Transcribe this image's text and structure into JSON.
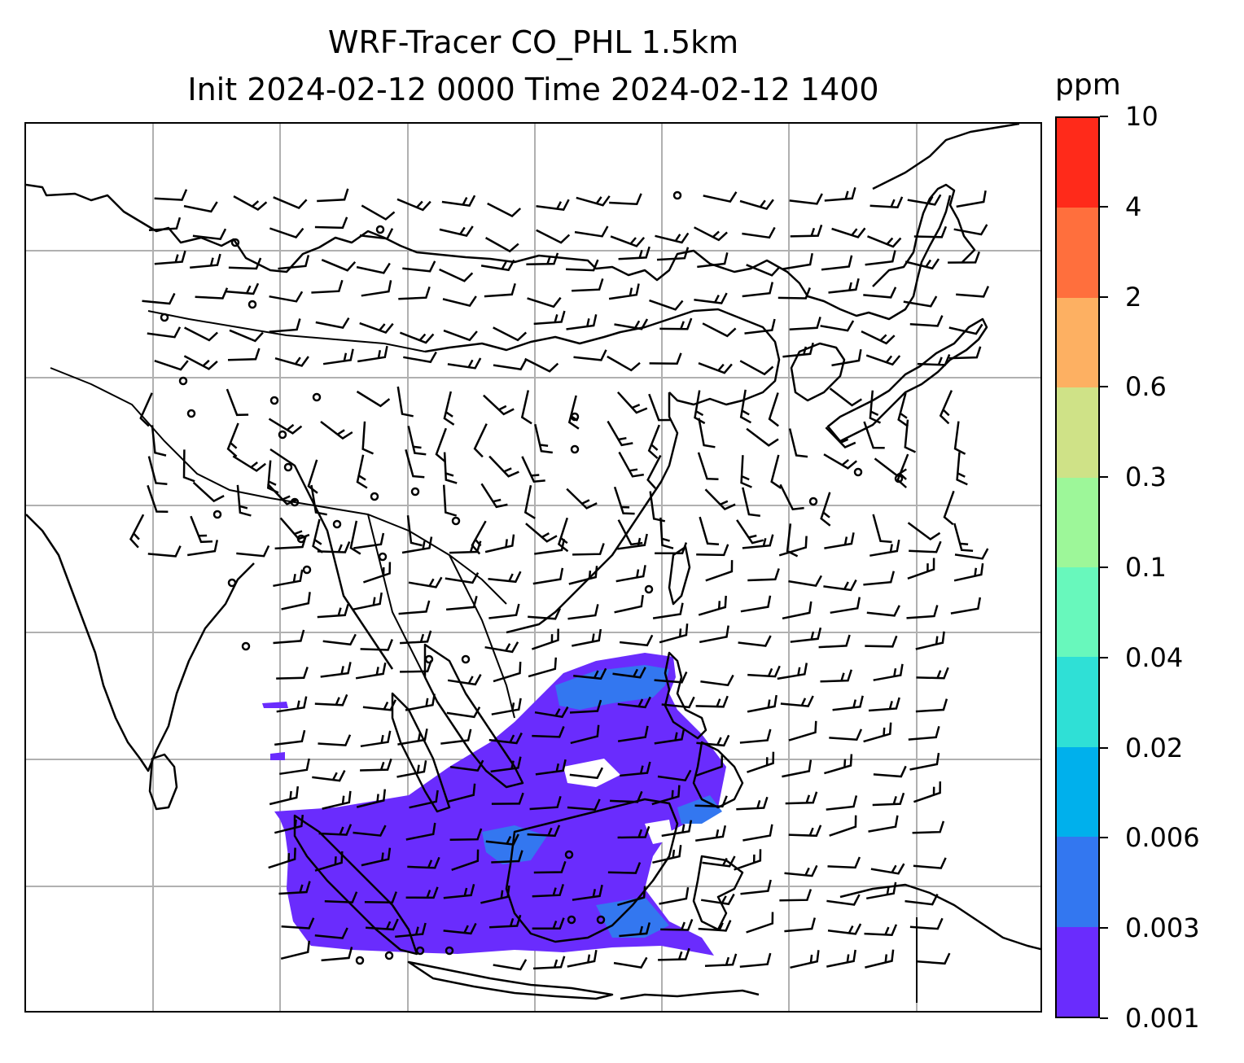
{
  "title": {
    "line1": "WRF-Tracer CO_PHL 1.5km",
    "line2": "Init 2024-02-12 0000 Time 2024-02-12 1400"
  },
  "colorbar": {
    "unit": "ppm",
    "ticks": [
      "10",
      "4",
      "2",
      "0.6",
      "0.3",
      "0.1",
      "0.04",
      "0.02",
      "0.006",
      "0.003",
      "0.001"
    ],
    "colors": [
      "#6a2cfd",
      "#3377f0",
      "#00b0ec",
      "#2fe0d6",
      "#68f8bc",
      "#9df799",
      "#cfe287",
      "#fdb062",
      "#ff6f3d",
      "#ff2a1a"
    ]
  },
  "map": {
    "features": [
      "coastlines",
      "country-borders",
      "lat-lon-gridlines",
      "wind-barbs",
      "tracer-plume"
    ],
    "gridline_color": "#b0b0b0",
    "plume_colors": {
      "low": "#6a2cfd",
      "mid": "#3377f0"
    }
  }
}
